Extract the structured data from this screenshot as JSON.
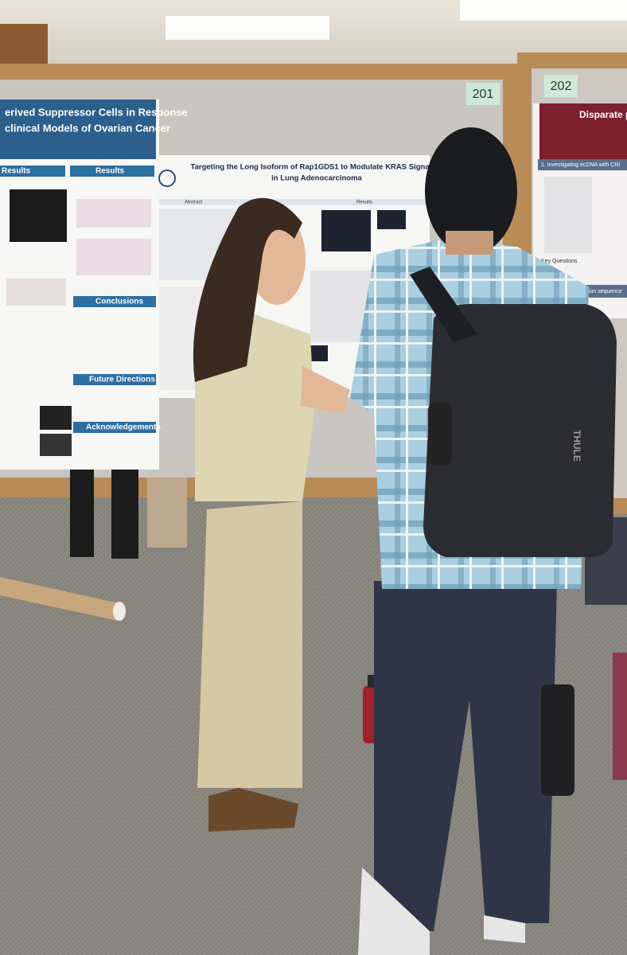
{
  "boards": [
    {
      "number": "201"
    },
    {
      "number": "202"
    }
  ],
  "posters": {
    "left": {
      "title_lines": [
        "erived Suppressor Cells in Response",
        "clinical Models of Ovarian Cancer"
      ],
      "sections": [
        "Results",
        "Results",
        "Conclusions",
        "Future Directions",
        "Acknowledgements"
      ]
    },
    "center": {
      "title_lines": [
        "Targeting the Long Isoform of Rap1GDS1 to Modulate KRAS Signaling",
        "in Lung Adenocarcinoma"
      ],
      "sections": [
        "Abstract",
        "Results"
      ]
    },
    "right": {
      "title": "Disparate p",
      "section": "1. Investigating ecDNA with CRI",
      "subheading": "Key Questions",
      "snippet": "tion sequence"
    }
  },
  "backpack_brand": "THULE"
}
